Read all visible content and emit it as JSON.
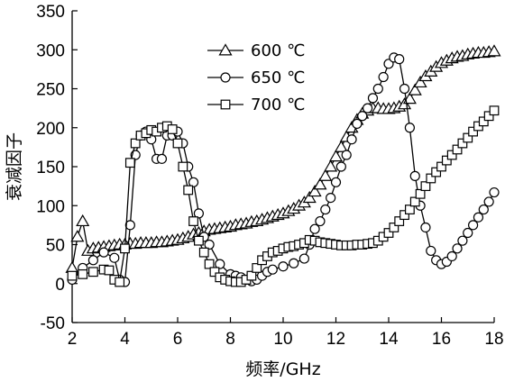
{
  "chart_data": {
    "type": "line",
    "title": "",
    "xlabel": "频率/GHz",
    "ylabel": "衰减因子",
    "xlim": [
      2,
      18
    ],
    "ylim": [
      -50,
      350
    ],
    "xticks": [
      2,
      4,
      6,
      8,
      10,
      12,
      14,
      16,
      18
    ],
    "yticks": [
      -50,
      0,
      50,
      100,
      150,
      200,
      250,
      300,
      350
    ],
    "grid": false,
    "legend_position": "top-left",
    "series": [
      {
        "name": "600 ℃",
        "marker": "triangle",
        "x": [
          2.0,
          2.2,
          2.4,
          2.6,
          2.8,
          3.0,
          3.2,
          3.4,
          3.6,
          3.8,
          4.0,
          4.2,
          4.4,
          4.6,
          4.8,
          5.0,
          5.2,
          5.4,
          5.6,
          5.8,
          6.0,
          6.2,
          6.4,
          6.6,
          6.8,
          7.0,
          7.2,
          7.4,
          7.6,
          7.8,
          8.0,
          8.2,
          8.4,
          8.6,
          8.8,
          9.0,
          9.2,
          9.4,
          9.6,
          9.8,
          10.0,
          10.2,
          10.4,
          10.6,
          10.8,
          11.0,
          11.2,
          11.4,
          11.6,
          11.8,
          12.0,
          12.2,
          12.4,
          12.6,
          12.8,
          13.0,
          13.2,
          13.4,
          13.6,
          13.8,
          14.0,
          14.2,
          14.4,
          14.6,
          14.8,
          15.0,
          15.2,
          15.4,
          15.6,
          15.8,
          16.0,
          16.2,
          16.4,
          16.6,
          16.8,
          17.0,
          17.2,
          17.4,
          17.6,
          17.8,
          18.0
        ],
        "values": [
          20,
          60,
          80,
          42,
          45,
          46,
          47,
          48,
          49,
          50,
          50,
          51,
          51,
          52,
          52,
          52,
          53,
          53,
          54,
          55,
          56,
          58,
          60,
          63,
          65,
          67,
          69,
          70,
          71,
          72,
          73,
          75,
          76,
          77,
          79,
          80,
          82,
          84,
          86,
          88,
          90,
          93,
          96,
          100,
          104,
          110,
          118,
          127,
          138,
          150,
          163,
          175,
          188,
          200,
          210,
          218,
          222,
          225,
          225,
          224,
          224,
          225,
          227,
          230,
          237,
          248,
          258,
          266,
          272,
          278,
          283,
          286,
          289,
          291,
          292,
          294,
          295,
          296,
          296,
          297,
          298
        ]
      },
      {
        "name": "650 ℃",
        "marker": "circle",
        "x": [
          2.0,
          2.4,
          2.8,
          3.2,
          3.6,
          3.8,
          4.0,
          4.2,
          4.4,
          4.6,
          4.8,
          5.0,
          5.2,
          5.4,
          5.6,
          5.8,
          6.0,
          6.2,
          6.4,
          6.6,
          6.8,
          7.0,
          7.2,
          7.6,
          8.0,
          8.2,
          8.4,
          8.6,
          8.8,
          9.0,
          9.2,
          9.4,
          9.6,
          10.0,
          10.4,
          10.8,
          11.0,
          11.2,
          11.4,
          11.6,
          11.8,
          12.0,
          12.2,
          12.4,
          12.6,
          12.8,
          13.0,
          13.2,
          13.4,
          13.6,
          13.8,
          14.0,
          14.2,
          14.4,
          14.6,
          14.8,
          15.0,
          15.2,
          15.4,
          15.6,
          15.8,
          16.0,
          16.2,
          16.4,
          16.6,
          16.8,
          17.0,
          17.2,
          17.4,
          17.6,
          17.8,
          18.0
        ],
        "values": [
          5,
          20,
          30,
          40,
          33,
          5,
          2,
          75,
          165,
          190,
          195,
          185,
          160,
          160,
          190,
          190,
          195,
          180,
          150,
          130,
          90,
          60,
          50,
          25,
          12,
          10,
          8,
          5,
          3,
          5,
          10,
          15,
          18,
          22,
          26,
          32,
          50,
          70,
          80,
          95,
          110,
          130,
          150,
          165,
          185,
          205,
          215,
          225,
          238,
          250,
          265,
          282,
          290,
          288,
          250,
          200,
          138,
          100,
          72,
          42,
          30,
          25,
          28,
          35,
          45,
          55,
          65,
          75,
          85,
          95,
          105,
          117
        ]
      },
      {
        "name": "700 ℃",
        "marker": "square",
        "x": [
          2.0,
          2.4,
          2.8,
          3.2,
          3.4,
          3.6,
          3.8,
          4.0,
          4.2,
          4.4,
          4.6,
          4.8,
          5.0,
          5.2,
          5.4,
          5.6,
          5.8,
          6.0,
          6.2,
          6.4,
          6.6,
          6.8,
          7.0,
          7.2,
          7.4,
          7.6,
          7.8,
          8.0,
          8.2,
          8.4,
          8.6,
          8.8,
          9.0,
          9.2,
          9.4,
          9.6,
          9.8,
          10.0,
          10.2,
          10.4,
          10.6,
          10.8,
          11.0,
          11.2,
          11.4,
          11.6,
          11.8,
          12.0,
          12.2,
          12.4,
          12.6,
          12.8,
          13.0,
          13.2,
          13.4,
          13.6,
          13.8,
          14.0,
          14.2,
          14.4,
          14.6,
          14.8,
          15.0,
          15.2,
          15.4,
          15.6,
          15.8,
          16.0,
          16.2,
          16.4,
          16.6,
          16.8,
          17.0,
          17.2,
          17.4,
          17.6,
          17.8,
          18.0
        ],
        "values": [
          10,
          12,
          15,
          18,
          17,
          5,
          2,
          45,
          155,
          180,
          190,
          193,
          197,
          195,
          200,
          202,
          198,
          180,
          150,
          120,
          80,
          55,
          40,
          25,
          15,
          8,
          5,
          3,
          2,
          2,
          5,
          10,
          20,
          30,
          35,
          40,
          42,
          45,
          47,
          48,
          50,
          52,
          56,
          55,
          53,
          52,
          51,
          50,
          49,
          49,
          49,
          50,
          50,
          51,
          52,
          55,
          60,
          65,
          72,
          80,
          88,
          95,
          105,
          115,
          125,
          135,
          143,
          150,
          158,
          165,
          172,
          180,
          187,
          195,
          202,
          208,
          215,
          222
        ]
      }
    ]
  }
}
